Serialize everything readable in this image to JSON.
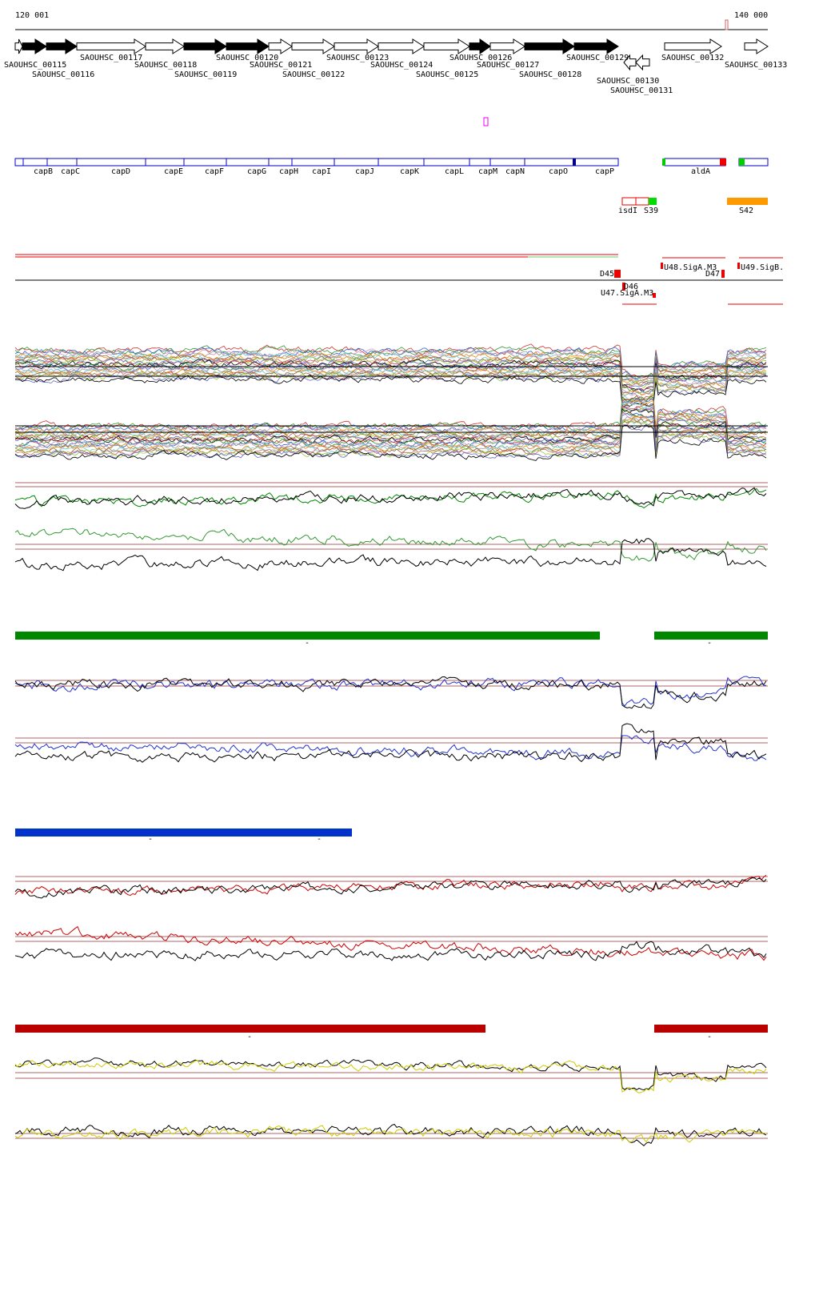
{
  "axis": {
    "start": "120 001",
    "end": "140 000"
  },
  "genes": [
    "SAOUHSC_00115",
    "SAOUHSC_00116",
    "SAOUHSC_00117",
    "SAOUHSC_00118",
    "SAOUHSC_00119",
    "SAOUHSC_00120",
    "SAOUHSC_00121",
    "SAOUHSC_00122",
    "SAOUHSC_00123",
    "SAOUHSC_00124",
    "SAOUHSC_00125",
    "SAOUHSC_00126",
    "SAOUHSC_00127",
    "SAOUHSC_00128",
    "SAOUHSC_00129",
    "SAOUHSC_00130",
    "SAOUHSC_00131",
    "SAOUHSC_00132",
    "SAOUHSC_00133"
  ],
  "cap_genes": [
    "capB",
    "capC",
    "capD",
    "capE",
    "capF",
    "capG",
    "capH",
    "capI",
    "capJ",
    "capK",
    "capL",
    "capM",
    "capN",
    "capO",
    "capP",
    "aldA"
  ],
  "features": [
    "isdI",
    "S39",
    "S42"
  ],
  "sites": [
    "D45",
    "D46",
    "D47",
    "U47.SigA.M3",
    "U48.SigA.M3",
    "U49.SigB."
  ],
  "segment_marks": [
    "-",
    "-",
    "-",
    "-",
    "-",
    "-"
  ]
}
